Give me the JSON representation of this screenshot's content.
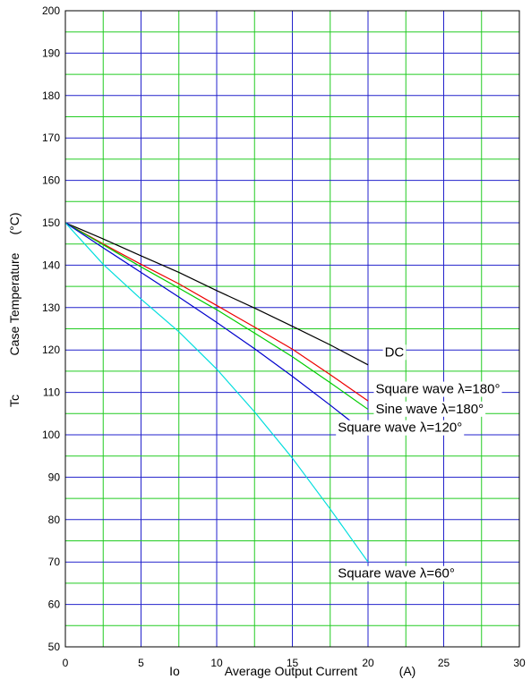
{
  "chart_data": {
    "type": "line",
    "xlabel_symbol": "Io",
    "xlabel": "Average Output Current",
    "xlabel_unit": "(A)",
    "ylabel_symbol": "Tc",
    "ylabel": "Case Temperature",
    "ylabel_unit": "(°C)",
    "xlim": [
      0,
      30
    ],
    "ylim": [
      50,
      200
    ],
    "x_ticks": [
      0,
      5,
      10,
      15,
      20,
      25,
      30
    ],
    "y_ticks": [
      50,
      60,
      70,
      80,
      90,
      100,
      110,
      120,
      130,
      140,
      150,
      160,
      170,
      180,
      190,
      200
    ],
    "grid": true,
    "major_grid_color": "#2222cc",
    "minor_grid_color": "#22cc22",
    "series": [
      {
        "name": "DC",
        "color": "#000000",
        "x": [
          0,
          2.5,
          5,
          7.5,
          10,
          12.5,
          15,
          17.5,
          20
        ],
        "y": [
          150,
          146.2,
          142.2,
          138.3,
          134.0,
          129.9,
          125.6,
          121.2,
          116.5
        ]
      },
      {
        "name": "Square wave λ=180°",
        "color": "#ee0000",
        "x": [
          0,
          2.5,
          5,
          7.5,
          10,
          12.5,
          15,
          17.5,
          20
        ],
        "y": [
          150,
          145.0,
          140.2,
          135.6,
          130.5,
          125.4,
          120.2,
          114.2,
          108.0
        ]
      },
      {
        "name": "Sine wave λ=180°",
        "color": "#00cc00",
        "x": [
          0,
          2.5,
          5,
          7.5,
          10,
          12.5,
          15,
          17.5,
          20
        ],
        "y": [
          150,
          144.8,
          139.6,
          134.6,
          129.5,
          124.0,
          118.4,
          112.3,
          106.0
        ]
      },
      {
        "name": "Square wave λ=120°",
        "color": "#0000cc",
        "x": [
          0,
          2.5,
          5,
          7.5,
          10,
          12.5,
          15,
          17.5,
          20
        ],
        "y": [
          150,
          144.1,
          138.3,
          132.5,
          126.5,
          120.3,
          113.8,
          107.0,
          100.0
        ]
      },
      {
        "name": "Square wave λ=60°",
        "color": "#00dddd",
        "x": [
          0,
          2.5,
          5,
          7.5,
          10,
          12.5,
          15,
          17.5,
          20
        ],
        "y": [
          150,
          140.2,
          132.0,
          124.3,
          115.5,
          105.4,
          94.5,
          82.5,
          70.0
        ]
      }
    ],
    "annotations": [
      {
        "text": "DC",
        "x": 21.1,
        "y": 118.5
      },
      {
        "text": "Square wave λ=180°",
        "x": 20.5,
        "y": 109.8
      },
      {
        "text": "Sine wave λ=180°",
        "x": 20.5,
        "y": 105.1
      },
      {
        "text": "Square wave λ=120°",
        "x": 18.0,
        "y": 100.7
      },
      {
        "text": "Square wave λ=60°",
        "x": 18.0,
        "y": 66.3
      }
    ]
  }
}
